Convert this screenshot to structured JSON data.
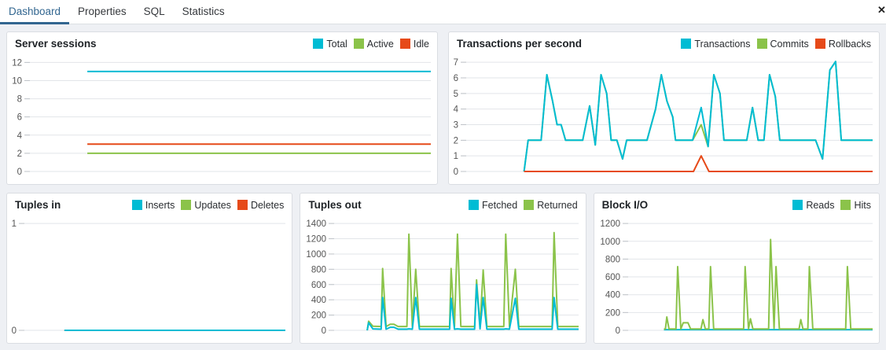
{
  "tabs": {
    "items": [
      {
        "label": "Dashboard",
        "active": true
      },
      {
        "label": "Properties",
        "active": false
      },
      {
        "label": "SQL",
        "active": false
      },
      {
        "label": "Statistics",
        "active": false
      }
    ],
    "close_icon": "✕"
  },
  "colors": {
    "cyan": "#00BCD4",
    "green": "#8BC34A",
    "red": "#E64A19",
    "active_tab": "#326690",
    "gridline": "#e2e5e9",
    "axis_text": "#555555"
  },
  "chart_data": [
    {
      "id": "server-sessions",
      "type": "line",
      "title": "Server sessions",
      "yticks": [
        0,
        2,
        4,
        6,
        8,
        10,
        12
      ],
      "ylim": [
        0,
        12.55
      ],
      "series": [
        {
          "name": "Total",
          "color": "cyan",
          "points": [
            [
              0.145,
              11
            ],
            [
              1,
              11
            ]
          ]
        },
        {
          "name": "Active",
          "color": "green",
          "points": [
            [
              0.145,
              2
            ],
            [
              1,
              2
            ]
          ]
        },
        {
          "name": "Idle",
          "color": "red",
          "points": [
            [
              0.145,
              3
            ],
            [
              1,
              3
            ]
          ]
        }
      ],
      "z": [
        0,
        1,
        2
      ]
    },
    {
      "id": "transactions-per-second",
      "type": "line",
      "title": "Transactions per second",
      "yticks": [
        0,
        1,
        2,
        3,
        4,
        5,
        6,
        7
      ],
      "ylim": [
        0,
        7.31
      ],
      "series": [
        {
          "name": "Transactions",
          "color": "cyan",
          "points": [
            [
              0.144,
              0
            ],
            [
              0.154,
              2
            ],
            [
              0.186,
              2
            ],
            [
              0.2,
              6.2
            ],
            [
              0.214,
              4.5
            ],
            [
              0.225,
              3
            ],
            [
              0.235,
              3
            ],
            [
              0.246,
              2
            ],
            [
              0.288,
              2
            ],
            [
              0.305,
              4.2
            ],
            [
              0.319,
              1.7
            ],
            [
              0.333,
              6.2
            ],
            [
              0.347,
              5
            ],
            [
              0.358,
              2
            ],
            [
              0.372,
              2
            ],
            [
              0.386,
              0.8
            ],
            [
              0.396,
              2
            ],
            [
              0.446,
              2
            ],
            [
              0.467,
              4
            ],
            [
              0.481,
              6.2
            ],
            [
              0.495,
              4.5
            ],
            [
              0.509,
              3.5
            ],
            [
              0.516,
              2
            ],
            [
              0.558,
              2
            ],
            [
              0.579,
              4.1
            ],
            [
              0.596,
              1.6
            ],
            [
              0.61,
              6.2
            ],
            [
              0.625,
              5
            ],
            [
              0.635,
              2
            ],
            [
              0.691,
              2
            ],
            [
              0.705,
              4.1
            ],
            [
              0.719,
              2
            ],
            [
              0.733,
              2
            ],
            [
              0.747,
              6.2
            ],
            [
              0.761,
              4.8
            ],
            [
              0.772,
              2
            ],
            [
              0.86,
              2
            ],
            [
              0.877,
              0.8
            ],
            [
              0.895,
              6.5
            ],
            [
              0.909,
              7.05
            ],
            [
              0.923,
              2
            ],
            [
              1,
              2
            ]
          ]
        },
        {
          "name": "Commits",
          "color": "green",
          "points": [
            [
              0.144,
              0
            ],
            [
              0.154,
              2
            ],
            [
              0.186,
              2
            ],
            [
              0.2,
              6.2
            ],
            [
              0.214,
              4.5
            ],
            [
              0.225,
              3
            ],
            [
              0.235,
              3
            ],
            [
              0.246,
              2
            ],
            [
              0.288,
              2
            ],
            [
              0.305,
              4.2
            ],
            [
              0.319,
              1.7
            ],
            [
              0.333,
              6.2
            ],
            [
              0.347,
              5
            ],
            [
              0.358,
              2
            ],
            [
              0.372,
              2
            ],
            [
              0.386,
              0.8
            ],
            [
              0.396,
              2
            ],
            [
              0.446,
              2
            ],
            [
              0.467,
              4
            ],
            [
              0.481,
              6.2
            ],
            [
              0.495,
              4.5
            ],
            [
              0.509,
              3.5
            ],
            [
              0.516,
              2
            ],
            [
              0.558,
              2
            ],
            [
              0.579,
              3.0
            ],
            [
              0.596,
              1.6
            ],
            [
              0.61,
              6.2
            ],
            [
              0.625,
              5
            ],
            [
              0.635,
              2
            ],
            [
              0.691,
              2
            ],
            [
              0.705,
              4.1
            ],
            [
              0.719,
              2
            ],
            [
              0.733,
              2
            ],
            [
              0.747,
              6.2
            ],
            [
              0.761,
              4.8
            ],
            [
              0.772,
              2
            ],
            [
              0.86,
              2
            ],
            [
              0.877,
              0.8
            ],
            [
              0.895,
              6.5
            ],
            [
              0.909,
              7.05
            ],
            [
              0.923,
              2
            ],
            [
              1,
              2
            ]
          ]
        },
        {
          "name": "Rollbacks",
          "color": "red",
          "points": [
            [
              0.144,
              0
            ],
            [
              0.56,
              0
            ],
            [
              0.579,
              1
            ],
            [
              0.598,
              0
            ],
            [
              1,
              0
            ]
          ]
        }
      ],
      "z": [
        1,
        0,
        2
      ]
    },
    {
      "id": "tuples-in",
      "type": "line",
      "title": "Tuples in",
      "yticks": [
        0,
        1
      ],
      "ylim": [
        0,
        1.045
      ],
      "series": [
        {
          "name": "Inserts",
          "color": "cyan",
          "points": [
            [
              0.156,
              0
            ],
            [
              1,
              0
            ]
          ]
        },
        {
          "name": "Updates",
          "color": "green",
          "points": [
            [
              0.156,
              0
            ],
            [
              1,
              0
            ]
          ]
        },
        {
          "name": "Deletes",
          "color": "red",
          "points": [
            [
              0.156,
              0
            ],
            [
              1,
              0
            ]
          ]
        }
      ],
      "z": [
        2,
        1,
        0
      ]
    },
    {
      "id": "tuples-out",
      "type": "line",
      "title": "Tuples out",
      "yticks": [
        0,
        200,
        400,
        600,
        800,
        1000,
        1200,
        1400
      ],
      "ylim": [
        0,
        1463
      ],
      "series": [
        {
          "name": "Fetched",
          "color": "cyan",
          "points": [
            [
              0.138,
              0
            ],
            [
              0.144,
              100
            ],
            [
              0.161,
              20
            ],
            [
              0.195,
              15
            ],
            [
              0.201,
              430
            ],
            [
              0.215,
              15
            ],
            [
              0.232,
              40
            ],
            [
              0.247,
              40
            ],
            [
              0.264,
              15
            ],
            [
              0.3,
              15
            ],
            [
              0.308,
              20
            ],
            [
              0.322,
              15
            ],
            [
              0.336,
              430
            ],
            [
              0.351,
              15
            ],
            [
              0.474,
              15
            ],
            [
              0.48,
              420
            ],
            [
              0.494,
              15
            ],
            [
              0.506,
              20
            ],
            [
              0.52,
              15
            ],
            [
              0.576,
              15
            ],
            [
              0.584,
              600
            ],
            [
              0.598,
              20
            ],
            [
              0.611,
              430
            ],
            [
              0.626,
              15
            ],
            [
              0.695,
              15
            ],
            [
              0.703,
              20
            ],
            [
              0.718,
              15
            ],
            [
              0.742,
              420
            ],
            [
              0.756,
              15
            ],
            [
              0.892,
              15
            ],
            [
              0.9,
              430
            ],
            [
              0.915,
              15
            ],
            [
              1,
              15
            ]
          ]
        },
        {
          "name": "Returned",
          "color": "green",
          "points": [
            [
              0.138,
              0
            ],
            [
              0.144,
              120
            ],
            [
              0.161,
              55
            ],
            [
              0.195,
              50
            ],
            [
              0.201,
              810
            ],
            [
              0.215,
              50
            ],
            [
              0.232,
              80
            ],
            [
              0.247,
              80
            ],
            [
              0.264,
              50
            ],
            [
              0.3,
              50
            ],
            [
              0.308,
              1260
            ],
            [
              0.322,
              50
            ],
            [
              0.336,
              800
            ],
            [
              0.351,
              50
            ],
            [
              0.474,
              50
            ],
            [
              0.48,
              810
            ],
            [
              0.494,
              50
            ],
            [
              0.506,
              1260
            ],
            [
              0.52,
              50
            ],
            [
              0.576,
              50
            ],
            [
              0.584,
              660
            ],
            [
              0.598,
              60
            ],
            [
              0.611,
              790
            ],
            [
              0.626,
              50
            ],
            [
              0.695,
              50
            ],
            [
              0.703,
              1260
            ],
            [
              0.718,
              50
            ],
            [
              0.742,
              800
            ],
            [
              0.756,
              50
            ],
            [
              0.892,
              50
            ],
            [
              0.9,
              1280
            ],
            [
              0.915,
              50
            ],
            [
              1,
              50
            ]
          ]
        }
      ],
      "z": [
        1,
        0
      ]
    },
    {
      "id": "block-io",
      "type": "line",
      "title": "Block I/O",
      "yticks": [
        0,
        200,
        400,
        600,
        800,
        1000,
        1200
      ],
      "ylim": [
        0,
        1254
      ],
      "series": [
        {
          "name": "Reads",
          "color": "cyan",
          "points": [
            [
              0.149,
              8
            ],
            [
              1,
              8
            ]
          ]
        },
        {
          "name": "Hits",
          "color": "green",
          "points": [
            [
              0.149,
              15
            ],
            [
              0.155,
              15
            ],
            [
              0.161,
              150
            ],
            [
              0.17,
              15
            ],
            [
              0.198,
              15
            ],
            [
              0.205,
              715
            ],
            [
              0.218,
              15
            ],
            [
              0.228,
              85
            ],
            [
              0.247,
              85
            ],
            [
              0.258,
              15
            ],
            [
              0.3,
              15
            ],
            [
              0.308,
              120
            ],
            [
              0.318,
              15
            ],
            [
              0.332,
              15
            ],
            [
              0.339,
              715
            ],
            [
              0.352,
              15
            ],
            [
              0.474,
              15
            ],
            [
              0.48,
              715
            ],
            [
              0.494,
              15
            ],
            [
              0.502,
              130
            ],
            [
              0.512,
              15
            ],
            [
              0.576,
              15
            ],
            [
              0.584,
              1020
            ],
            [
              0.598,
              20
            ],
            [
              0.606,
              715
            ],
            [
              0.62,
              15
            ],
            [
              0.7,
              15
            ],
            [
              0.707,
              120
            ],
            [
              0.716,
              15
            ],
            [
              0.736,
              15
            ],
            [
              0.742,
              715
            ],
            [
              0.756,
              15
            ],
            [
              0.89,
              15
            ],
            [
              0.897,
              715
            ],
            [
              0.911,
              15
            ],
            [
              1,
              15
            ]
          ]
        }
      ],
      "z": [
        0,
        1
      ]
    }
  ]
}
